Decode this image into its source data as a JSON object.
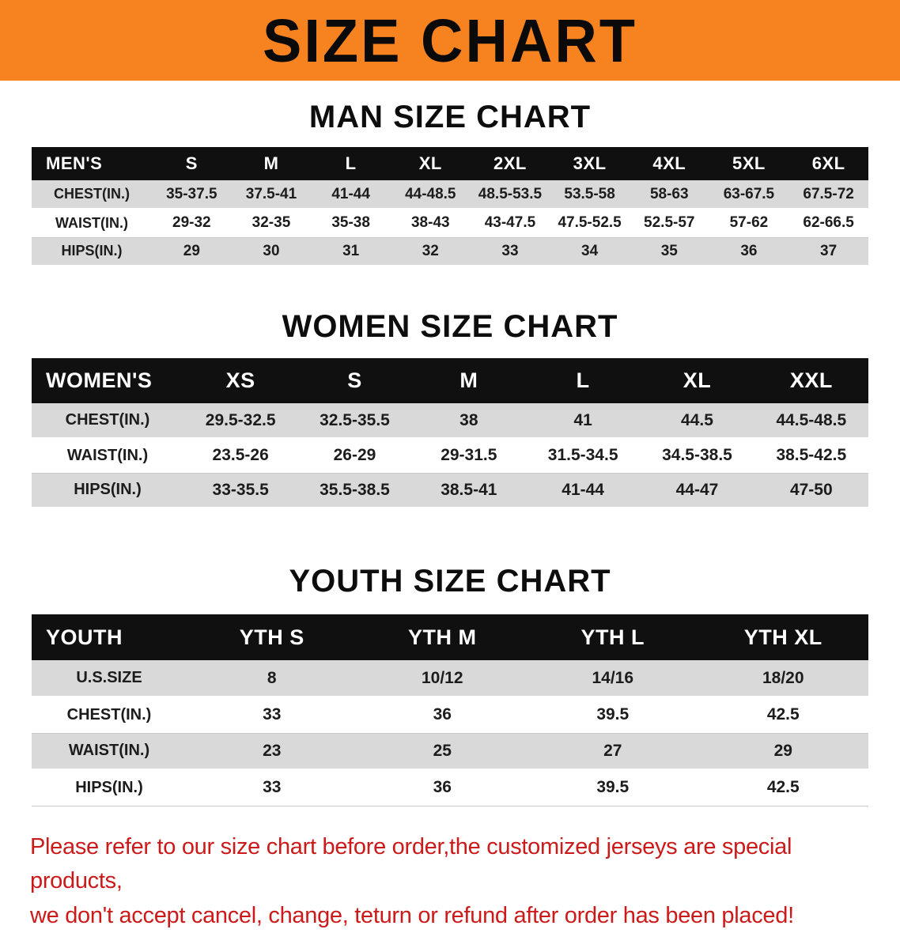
{
  "banner": {
    "title": "SIZE CHART"
  },
  "colors": {
    "banner_orange": "#f68320",
    "header_black": "#101010",
    "stripe_gray": "#d9d9d9",
    "note_red": "#cc1a1a",
    "text_dark": "#111111"
  },
  "sections": [
    {
      "heading": "MAN SIZE CHART",
      "table": {
        "header": [
          "MEN'S",
          "S",
          "M",
          "L",
          "XL",
          "2XL",
          "3XL",
          "4XL",
          "5XL",
          "6XL"
        ],
        "rows": [
          [
            "CHEST(IN.)",
            "35-37.5",
            "37.5-41",
            "41-44",
            "44-48.5",
            "48.5-53.5",
            "53.5-58",
            "58-63",
            "63-67.5",
            "67.5-72"
          ],
          [
            "WAIST(IN.)",
            "29-32",
            "32-35",
            "35-38",
            "38-43",
            "43-47.5",
            "47.5-52.5",
            "52.5-57",
            "57-62",
            "62-66.5"
          ],
          [
            "HIPS(IN.)",
            "29",
            "30",
            "31",
            "32",
            "33",
            "34",
            "35",
            "36",
            "37"
          ]
        ]
      }
    },
    {
      "heading": "WOMEN SIZE CHART",
      "table": {
        "header": [
          "WOMEN'S",
          "XS",
          "S",
          "M",
          "L",
          "XL",
          "XXL"
        ],
        "rows": [
          [
            "CHEST(IN.)",
            "29.5-32.5",
            "32.5-35.5",
            "38",
            "41",
            "44.5",
            "44.5-48.5"
          ],
          [
            "WAIST(IN.)",
            "23.5-26",
            "26-29",
            "29-31.5",
            "31.5-34.5",
            "34.5-38.5",
            "38.5-42.5"
          ],
          [
            "HIPS(IN.)",
            "33-35.5",
            "35.5-38.5",
            "38.5-41",
            "41-44",
            "44-47",
            "47-50"
          ]
        ]
      }
    },
    {
      "heading": "YOUTH SIZE CHART",
      "table": {
        "header": [
          "YOUTH",
          "YTH S",
          "YTH M",
          "YTH L",
          "YTH XL"
        ],
        "rows": [
          [
            "U.S.SIZE",
            "8",
            "10/12",
            "14/16",
            "18/20"
          ],
          [
            "CHEST(IN.)",
            "33",
            "36",
            "39.5",
            "42.5"
          ],
          [
            "WAIST(IN.)",
            "23",
            "25",
            "27",
            "29"
          ],
          [
            "HIPS(IN.)",
            "33",
            "36",
            "39.5",
            "42.5"
          ]
        ]
      }
    }
  ],
  "footer": {
    "line1": "Please refer to our size chart before order,the customized jerseys are special products,",
    "line2": "we don't accept cancel, change, teturn or refund after order has been placed!"
  }
}
